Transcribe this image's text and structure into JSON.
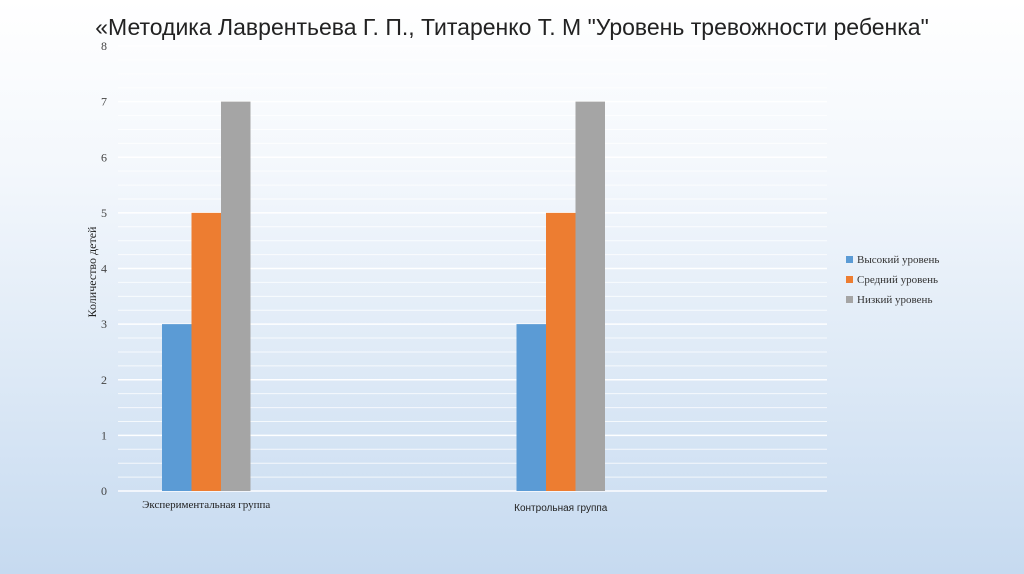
{
  "slide": {
    "title": "«Методика Лаврентьева Г. П., Титаренко Т. М \"Уровень тревожности ребенка\""
  },
  "chart_data": {
    "type": "bar",
    "title": "",
    "xlabel": "",
    "ylabel": "Количество детей",
    "ylim": [
      0,
      8
    ],
    "yticks": [
      0,
      1,
      2,
      3,
      4,
      5,
      6,
      7,
      8
    ],
    "grid": true,
    "legend_position": "right",
    "categories": [
      "Экспериментальная группа",
      "Контрольная группа"
    ],
    "series": [
      {
        "name": "Высокий уровень",
        "color": "#5b9bd5",
        "values": [
          3,
          3
        ]
      },
      {
        "name": "Средний уровень",
        "color": "#ed7d31",
        "values": [
          5,
          5
        ]
      },
      {
        "name": "Низкий уровень",
        "color": "#a5a5a5",
        "values": [
          7,
          7
        ]
      }
    ]
  }
}
